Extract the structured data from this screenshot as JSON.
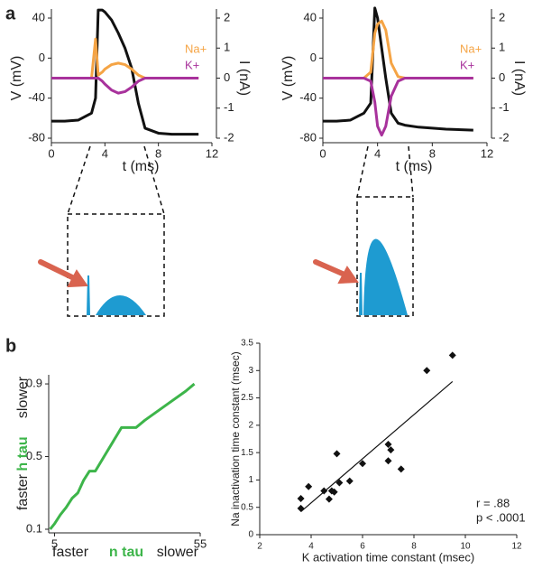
{
  "panel_labels": [
    "a",
    "b"
  ],
  "chart_data": [
    {
      "type": "line",
      "xlabel": "t (ms)",
      "ylabel": "V (mV)",
      "y2label": "I (nA)",
      "xlim": [
        0,
        12
      ],
      "xticks": [
        0,
        4,
        8,
        12
      ],
      "ylim": [
        -80,
        40
      ],
      "yticks": [
        -80,
        -40,
        0,
        40
      ],
      "y2lim": [
        -2,
        2
      ],
      "y2ticks": [
        -2,
        -1,
        0,
        1,
        2
      ],
      "x": [
        0,
        1,
        2,
        3,
        3.3,
        3.5,
        3.8,
        4,
        4.5,
        5,
        5.5,
        6,
        6.5,
        7,
        8,
        9,
        11
      ],
      "series": [
        {
          "color": "#111111",
          "values": [
            -63,
            -63,
            -62,
            -55,
            -40,
            48,
            48,
            46,
            38,
            25,
            10,
            -10,
            -45,
            -70,
            -75,
            -76,
            -76
          ]
        },
        {
          "name": "Na+",
          "color": "#f5a445",
          "axis": "y2",
          "values": [
            0,
            0,
            0,
            0,
            1.3,
            0.1,
            0.2,
            0.3,
            0.45,
            0.5,
            0.45,
            0.3,
            0.1,
            0,
            0,
            0,
            0
          ]
        },
        {
          "name": "K+",
          "color": "#a8329c",
          "axis": "y2",
          "values": [
            0,
            0,
            0,
            0,
            0,
            0,
            -0.1,
            -0.2,
            -0.4,
            -0.5,
            -0.45,
            -0.3,
            -0.1,
            0,
            0,
            0,
            0
          ]
        }
      ]
    },
    {
      "type": "line",
      "xlabel": "t (ms)",
      "ylabel": "V (mV)",
      "y2label": "I (nA)",
      "xlim": [
        0,
        12
      ],
      "xticks": [
        0,
        4,
        8,
        12
      ],
      "ylim": [
        -80,
        40
      ],
      "yticks": [
        -80,
        -40,
        0,
        40
      ],
      "y2lim": [
        -2,
        2
      ],
      "y2ticks": [
        -2,
        -1,
        0,
        1,
        2
      ],
      "x": [
        0,
        1,
        2,
        3,
        3.5,
        3.8,
        4,
        4.3,
        4.6,
        5,
        5.5,
        6,
        7,
        8,
        9,
        11
      ],
      "series": [
        {
          "color": "#111111",
          "values": [
            -63,
            -63,
            -62,
            -55,
            -45,
            50,
            40,
            10,
            -20,
            -55,
            -65,
            -67,
            -69,
            -70,
            -71,
            -72
          ]
        },
        {
          "name": "Na+",
          "color": "#f5a445",
          "axis": "y2",
          "values": [
            0,
            0,
            0,
            0,
            0.2,
            1.5,
            1.8,
            1.9,
            1.6,
            0.5,
            0.05,
            0,
            0,
            0,
            0,
            0
          ]
        },
        {
          "name": "K+",
          "color": "#a8329c",
          "axis": "y2",
          "values": [
            0,
            0,
            0,
            0,
            -0.1,
            -0.8,
            -1.6,
            -1.9,
            -1.6,
            -0.6,
            -0.1,
            0,
            0,
            0,
            0,
            0
          ]
        }
      ]
    },
    {
      "type": "line",
      "xlabel": "n tau",
      "x_low_label": "faster",
      "x_high_label": "slower",
      "ylabel": "h tau",
      "y_low_label": "faster",
      "y_high_label": "slower",
      "xlim": [
        3,
        55
      ],
      "xticks": [
        5,
        55
      ],
      "ylim": [
        0.08,
        0.95
      ],
      "yticks": [
        0.1,
        0.5,
        0.9
      ],
      "x": [
        3.5,
        5,
        7,
        9,
        11,
        13,
        15,
        17,
        19,
        22,
        25,
        28,
        33,
        36,
        43,
        50,
        53
      ],
      "series": [
        {
          "color": "#3db54a",
          "values": [
            0.1,
            0.13,
            0.18,
            0.22,
            0.27,
            0.3,
            0.37,
            0.42,
            0.42,
            0.5,
            0.58,
            0.66,
            0.66,
            0.7,
            0.78,
            0.86,
            0.9
          ]
        }
      ]
    },
    {
      "type": "scatter",
      "xlabel": "K activation time constant (msec)",
      "ylabel": "Na inactivation time constant (msec)",
      "xlim": [
        2,
        12
      ],
      "xticks": [
        2,
        4,
        6,
        8,
        10,
        12
      ],
      "ylim": [
        0,
        3.5
      ],
      "yticks": [
        0,
        0.5,
        1,
        1.5,
        2,
        2.5,
        3,
        3.5
      ],
      "annotations": [
        "r = .88",
        "p < .0001"
      ],
      "series": [
        {
          "color": "#111111",
          "x": [
            3.6,
            3.6,
            3.9,
            4.5,
            4.7,
            4.8,
            4.9,
            5,
            5.1,
            5.5,
            6,
            7,
            7.1,
            7,
            7.5,
            8.5,
            9.5
          ],
          "values": [
            0.48,
            0.66,
            0.88,
            0.8,
            0.65,
            0.8,
            0.78,
            1.48,
            0.95,
            0.98,
            1.3,
            1.65,
            1.55,
            1.35,
            1.2,
            3,
            3.28
          ]
        }
      ],
      "fit_line": {
        "x": [
          3.6,
          9.5
        ],
        "values": [
          0.42,
          2.8
        ]
      }
    }
  ]
}
